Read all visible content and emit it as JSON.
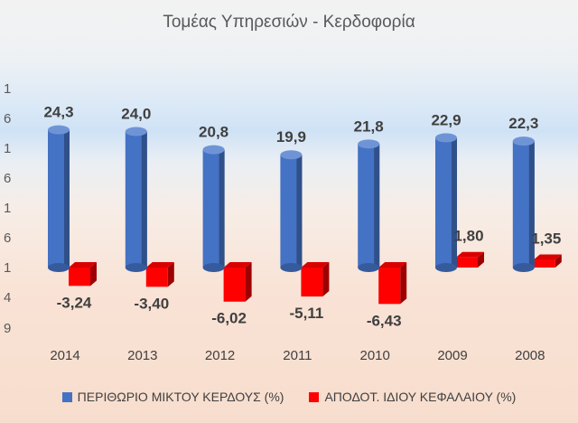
{
  "chart_data": {
    "type": "bar",
    "title": "Τομέας Υπηρεσιών - Κερδοφορία",
    "categories": [
      "2014",
      "2013",
      "2012",
      "2011",
      "2010",
      "2009",
      "2008"
    ],
    "series": [
      {
        "name": "ΠΕΡΙΘΩΡΙΟ ΜΙΚΤΟΥ ΚΕΡΔΟΥΣ (%)",
        "values": [
          24.3,
          24.0,
          20.8,
          19.9,
          21.8,
          22.9,
          22.3
        ],
        "labels": [
          "24,3",
          "24,0",
          "20,8",
          "19,9",
          "21,8",
          "22,9",
          "22,3"
        ],
        "color": "#4472c4"
      },
      {
        "name": "ΑΠΟΔΟΤ. ΙΔΙΟΥ ΚΕΦΑΛΑΙΟΥ (%)",
        "values": [
          -3.24,
          -3.4,
          -6.02,
          -5.11,
          -6.43,
          1.8,
          1.35
        ],
        "labels": [
          "-3,24",
          "-3,40",
          "-6,02",
          "-5,11",
          "-6,43",
          "1,80",
          "1,35"
        ],
        "color": "#ff0000"
      }
    ],
    "axis_tick_fragments": [
      "1",
      "6",
      "1",
      "6",
      "1",
      "6",
      "1",
      "4",
      "9"
    ],
    "ylim": [
      -9,
      31
    ],
    "grid": false,
    "legend_position": "bottom"
  }
}
